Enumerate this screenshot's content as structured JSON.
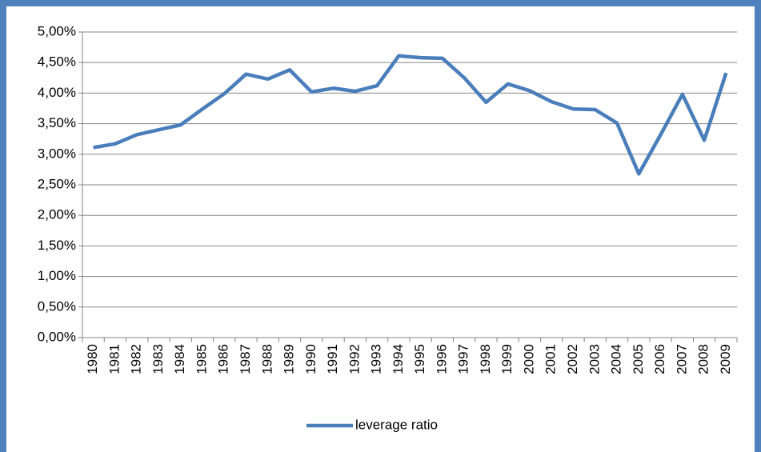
{
  "chart_data": {
    "type": "line",
    "categories": [
      "1980",
      "1981",
      "1982",
      "1983",
      "1984",
      "1985",
      "1986",
      "1987",
      "1988",
      "1989",
      "1990",
      "1991",
      "1992",
      "1993",
      "1994",
      "1995",
      "1996",
      "1997",
      "1998",
      "1999",
      "2000",
      "2001",
      "2002",
      "2003",
      "2004",
      "2005",
      "2006",
      "2007",
      "2008",
      "2009"
    ],
    "series": [
      {
        "name": "leverage ratio",
        "color": "#4a7ebb",
        "values": [
          3.11,
          3.17,
          3.32,
          3.4,
          3.48,
          3.74,
          3.99,
          4.31,
          4.23,
          4.38,
          4.02,
          4.08,
          4.03,
          4.12,
          4.61,
          4.58,
          4.57,
          4.25,
          3.85,
          4.15,
          4.04,
          3.86,
          3.74,
          3.73,
          3.51,
          2.68,
          3.32,
          3.98,
          3.23,
          4.33
        ]
      }
    ],
    "ylim": [
      0,
      5
    ],
    "yticks": [
      {
        "value": 0,
        "label": "0,00%"
      },
      {
        "value": 0.5,
        "label": "0,50%"
      },
      {
        "value": 1,
        "label": "1,00%"
      },
      {
        "value": 1.5,
        "label": "1,50%"
      },
      {
        "value": 2,
        "label": "2,00%"
      },
      {
        "value": 2.5,
        "label": "2,50%"
      },
      {
        "value": 3,
        "label": "3,00%"
      },
      {
        "value": 3.5,
        "label": "3,50%"
      },
      {
        "value": 4,
        "label": "4,00%"
      },
      {
        "value": 4.5,
        "label": "4,50%"
      },
      {
        "value": 5,
        "label": "5,00%"
      }
    ],
    "grid": true,
    "legend": "bottom"
  }
}
